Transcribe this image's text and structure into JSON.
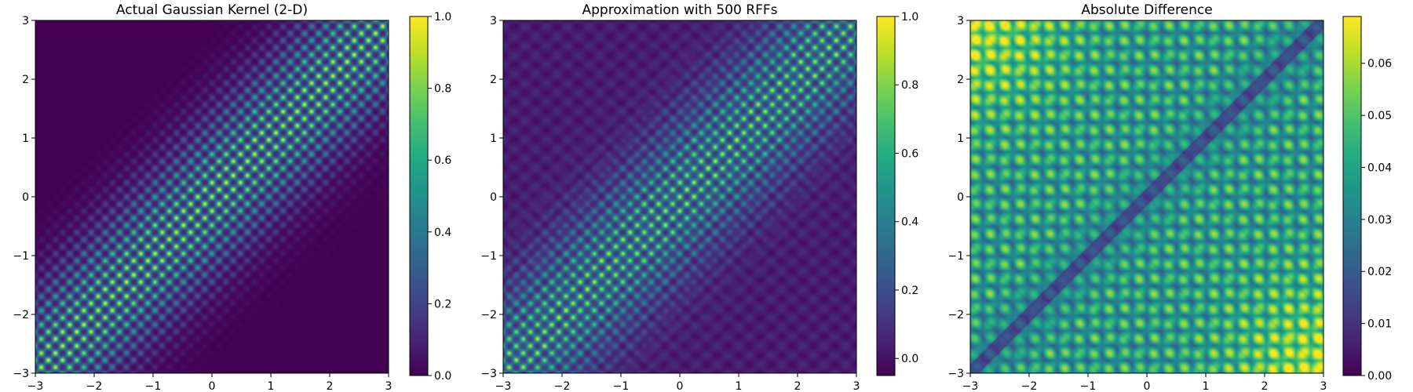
{
  "chart_data": [
    {
      "type": "heatmap",
      "title": "Actual Gaussian Kernel (2-D)",
      "xlabel": "",
      "ylabel": "",
      "xlim": [
        -3,
        3
      ],
      "ylim": [
        -3,
        3
      ],
      "x_ticks": [
        "−3",
        "−2",
        "−1",
        "0",
        "1",
        "2",
        "3"
      ],
      "y_ticks": [
        "−3",
        "−2",
        "−1",
        "0",
        "1",
        "2",
        "3"
      ],
      "colorbar": {
        "range": [
          0,
          1
        ],
        "ticks": [
          {
            "value": 0,
            "label": "0.0"
          },
          {
            "value": 0.2,
            "label": "0.2"
          },
          {
            "value": 0.4,
            "label": "0.4"
          },
          {
            "value": 0.6,
            "label": "0.6"
          },
          {
            "value": 0.8,
            "label": "0.8"
          },
          {
            "value": 1,
            "label": "1.0"
          }
        ]
      },
      "colormap": "viridis",
      "grid": false
    },
    {
      "type": "heatmap",
      "title": "Approximation with 500 RFFs",
      "xlabel": "",
      "ylabel": "",
      "xlim": [
        -3,
        3
      ],
      "ylim": [
        -3,
        3
      ],
      "x_ticks": [
        "−3",
        "−2",
        "−1",
        "0",
        "1",
        "2",
        "3"
      ],
      "y_ticks": [
        "−3",
        "−2",
        "−1",
        "0",
        "1",
        "2",
        "3"
      ],
      "colorbar": {
        "range": [
          -0.05,
          1
        ],
        "ticks": [
          {
            "value": 0,
            "label": "0.0"
          },
          {
            "value": 0.2,
            "label": "0.2"
          },
          {
            "value": 0.4,
            "label": "0.4"
          },
          {
            "value": 0.6,
            "label": "0.6"
          },
          {
            "value": 0.8,
            "label": "0.8"
          },
          {
            "value": 1,
            "label": "1.0"
          }
        ]
      },
      "colormap": "viridis",
      "grid": false
    },
    {
      "type": "heatmap",
      "title": "Absolute Difference",
      "xlabel": "",
      "ylabel": "",
      "xlim": [
        -3,
        3
      ],
      "ylim": [
        -3,
        3
      ],
      "x_ticks": [
        "−3",
        "−2",
        "−1",
        "0",
        "1",
        "2",
        "3"
      ],
      "y_ticks": [
        "−3",
        "−2",
        "−1",
        "0",
        "1",
        "2",
        "3"
      ],
      "colorbar": {
        "range": [
          0,
          0.069
        ],
        "ticks": [
          {
            "value": 0,
            "label": "0.00"
          },
          {
            "value": 0.01,
            "label": "0.01"
          },
          {
            "value": 0.02,
            "label": "0.02"
          },
          {
            "value": 0.03,
            "label": "0.03"
          },
          {
            "value": 0.04,
            "label": "0.04"
          },
          {
            "value": 0.05,
            "label": "0.05"
          },
          {
            "value": 0.06,
            "label": "0.06"
          }
        ]
      },
      "colormap": "viridis",
      "grid": false
    }
  ]
}
